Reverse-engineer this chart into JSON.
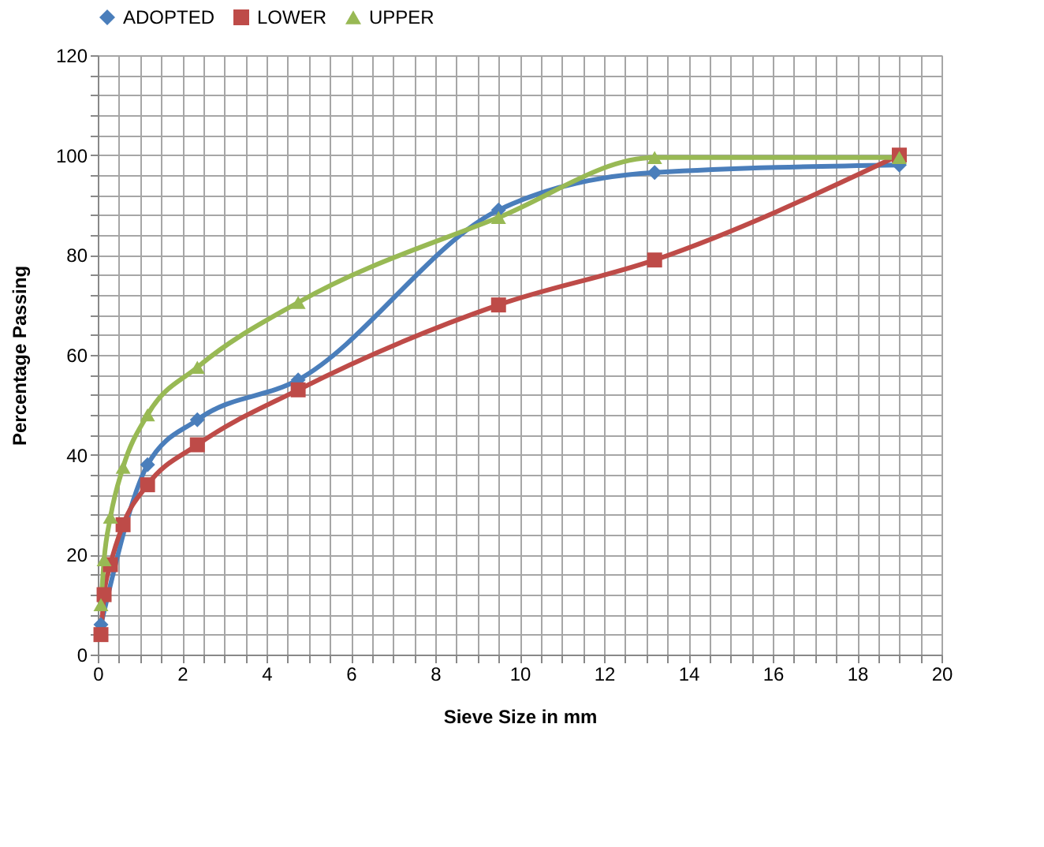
{
  "chart_data": {
    "type": "line",
    "xlabel": "Sieve Size  in mm",
    "ylabel": "Percentage Passing",
    "x": [
      0.075,
      0.15,
      0.3,
      0.6,
      1.18,
      2.36,
      4.75,
      9.5,
      13.2,
      19
    ],
    "series": [
      {
        "name": "ADOPTED",
        "color": "#4a7ebb",
        "marker": "diamond",
        "x": [
          0.075,
          1.18,
          2.36,
          4.75,
          9.5,
          13.2,
          19
        ],
        "values": [
          6,
          38,
          47,
          55,
          89,
          96.5,
          98
        ]
      },
      {
        "name": "LOWER",
        "color": "#be4b48",
        "marker": "square",
        "values": [
          4,
          12,
          18,
          26,
          34,
          42,
          53,
          70,
          79,
          100
        ]
      },
      {
        "name": "UPPER",
        "color": "#98b954",
        "marker": "triangle",
        "values": [
          10,
          19,
          27.5,
          37.5,
          48,
          57.5,
          70.5,
          87.5,
          99.5,
          99.5
        ]
      }
    ],
    "xlim": [
      0,
      20
    ],
    "ylim": [
      0,
      120
    ],
    "xticks": [
      0,
      {
        "value": 0.5,
        "label": null
      },
      {
        "value": 1,
        "label": null
      },
      {
        "value": 1.5,
        "label": null
      },
      2,
      {
        "value": 2.5,
        "label": null
      },
      {
        "value": 3,
        "label": null
      },
      {
        "value": 3.5,
        "label": null
      },
      4,
      {
        "value": 4.5,
        "label": null
      },
      {
        "value": 5,
        "label": null
      },
      {
        "value": 5.5,
        "label": null
      },
      6,
      {
        "value": 6.5,
        "label": null
      },
      {
        "value": 7,
        "label": null
      },
      {
        "value": 7.5,
        "label": null
      },
      8,
      {
        "value": 8.5,
        "label": null
      },
      {
        "value": 9,
        "label": null
      },
      {
        "value": 9.5,
        "label": null
      },
      10,
      {
        "value": 10.5,
        "label": null
      },
      {
        "value": 11,
        "label": null
      },
      {
        "value": 11.5,
        "label": null
      },
      12,
      {
        "value": 12.5,
        "label": null
      },
      {
        "value": 13,
        "label": null
      },
      {
        "value": 13.5,
        "label": null
      },
      14,
      {
        "value": 14.5,
        "label": null
      },
      {
        "value": 15,
        "label": null
      },
      {
        "value": 15.5,
        "label": null
      },
      16,
      {
        "value": 16.5,
        "label": null
      },
      {
        "value": 17,
        "label": null
      },
      {
        "value": 17.5,
        "label": null
      },
      18,
      {
        "value": 18.5,
        "label": null
      },
      {
        "value": 19,
        "label": null
      },
      {
        "value": 19.5,
        "label": null
      },
      20
    ],
    "yticks": [
      0,
      {
        "value": 4,
        "label": null
      },
      {
        "value": 8,
        "label": null
      },
      {
        "value": 12,
        "label": null
      },
      {
        "value": 16,
        "label": null
      },
      20,
      {
        "value": 24,
        "label": null
      },
      {
        "value": 28,
        "label": null
      },
      {
        "value": 32,
        "label": null
      },
      {
        "value": 36,
        "label": null
      },
      40,
      {
        "value": 44,
        "label": null
      },
      {
        "value": 48,
        "label": null
      },
      {
        "value": 52,
        "label": null
      },
      {
        "value": 56,
        "label": null
      },
      60,
      {
        "value": 64,
        "label": null
      },
      {
        "value": 68,
        "label": null
      },
      {
        "value": 72,
        "label": null
      },
      {
        "value": 76,
        "label": null
      },
      80,
      {
        "value": 84,
        "label": null
      },
      {
        "value": 88,
        "label": null
      },
      {
        "value": 92,
        "label": null
      },
      {
        "value": 96,
        "label": null
      },
      100,
      {
        "value": 104,
        "label": null
      },
      {
        "value": 108,
        "label": null
      },
      {
        "value": 112,
        "label": null
      },
      {
        "value": 116,
        "label": null
      },
      120
    ],
    "grid": true,
    "legend": "top",
    "line_style": "solid"
  }
}
